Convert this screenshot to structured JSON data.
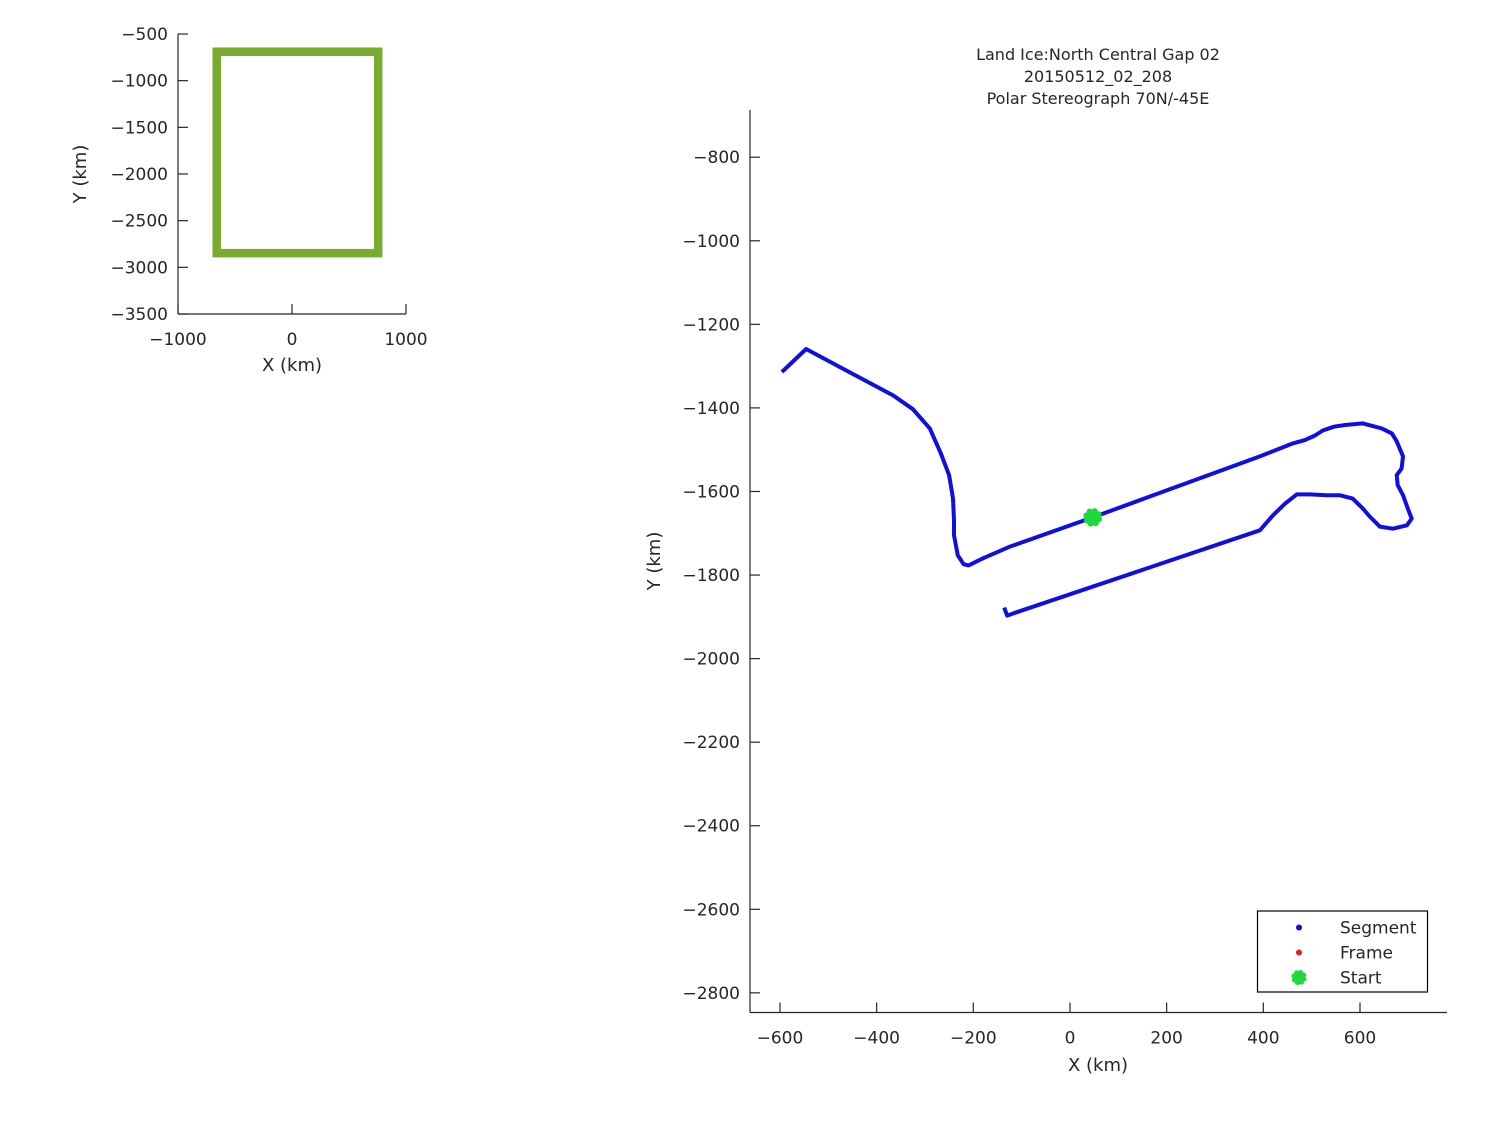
{
  "chart_data": [
    {
      "type": "line",
      "name": "coverage-overview",
      "xlabel": "X (km)",
      "ylabel": "Y (km)",
      "xlim": [
        -1000,
        1000
      ],
      "ylim": [
        -3500,
        -500
      ],
      "xticks": [
        -1000,
        0,
        1000
      ],
      "yticks": [
        -500,
        -1000,
        -1500,
        -2000,
        -2500,
        -3000,
        -3500
      ],
      "grid": false,
      "legend": null,
      "series": [
        {
          "name": "map-boundary",
          "style": "rect-outline",
          "color": "#77AC30",
          "rect_km": {
            "x_min": -660,
            "x_max": 756,
            "y_min": -2848,
            "y_max": -690
          }
        }
      ]
    },
    {
      "type": "line",
      "name": "flight-track",
      "title_lines": [
        "Land Ice:North Central Gap 02",
        "20150512_02_208",
        "Polar Stereograph 70N/-45E"
      ],
      "xlabel": "X (km)",
      "ylabel": "Y (km)",
      "xlim": [
        -662,
        780
      ],
      "ylim": [
        -2847,
        -687
      ],
      "xticks": [
        -600,
        -400,
        -200,
        0,
        200,
        400,
        600
      ],
      "yticks": [
        -800,
        -1000,
        -1200,
        -1400,
        -1600,
        -1800,
        -2000,
        -2200,
        -2400,
        -2600,
        -2800
      ],
      "grid": false,
      "series": [
        {
          "name": "Segment",
          "style": "path",
          "color": "#0F0FE0",
          "points_km": [
            [
              -596,
              -1314
            ],
            [
              -546,
              -1259
            ],
            [
              -470,
              -1306
            ],
            [
              -366,
              -1370
            ],
            [
              -325,
              -1403
            ],
            [
              -290,
              -1449
            ],
            [
              -267,
              -1509
            ],
            [
              -250,
              -1561
            ],
            [
              -242,
              -1617
            ],
            [
              -240,
              -1669
            ],
            [
              -240,
              -1705
            ],
            [
              -232,
              -1753
            ],
            [
              -220,
              -1774
            ],
            [
              -210,
              -1777
            ],
            [
              -180,
              -1760
            ],
            [
              -124,
              -1732
            ],
            [
              47,
              -1662
            ],
            [
              393,
              -1516
            ],
            [
              461,
              -1485
            ],
            [
              486,
              -1477
            ],
            [
              507,
              -1466
            ],
            [
              523,
              -1454
            ],
            [
              546,
              -1445
            ],
            [
              569,
              -1441
            ],
            [
              606,
              -1437
            ],
            [
              645,
              -1449
            ],
            [
              666,
              -1461
            ],
            [
              676,
              -1480
            ],
            [
              689,
              -1516
            ],
            [
              686,
              -1545
            ],
            [
              676,
              -1561
            ],
            [
              678,
              -1585
            ],
            [
              689,
              -1609
            ],
            [
              699,
              -1641
            ],
            [
              707,
              -1665
            ],
            [
              697,
              -1681
            ],
            [
              668,
              -1689
            ],
            [
              641,
              -1684
            ],
            [
              620,
              -1660
            ],
            [
              606,
              -1641
            ],
            [
              585,
              -1617
            ],
            [
              558,
              -1609
            ],
            [
              531,
              -1609
            ],
            [
              496,
              -1607
            ],
            [
              469,
              -1607
            ],
            [
              445,
              -1629
            ],
            [
              420,
              -1657
            ],
            [
              393,
              -1693
            ],
            [
              -110,
              -1889
            ],
            [
              -130,
              -1897
            ],
            [
              -136,
              -1878
            ]
          ]
        },
        {
          "name": "Frame",
          "style": "dots",
          "color": "#E02020",
          "points_km": []
        },
        {
          "name": "Start",
          "style": "blob",
          "color": "#1FD93C",
          "points_km": [
            [
              47,
              -1662
            ]
          ]
        }
      ],
      "legend": {
        "position": "lower right",
        "items": [
          {
            "label": "Segment",
            "marker": "dot",
            "color": "#0F0FE0"
          },
          {
            "label": "Frame",
            "marker": "dot",
            "color": "#E02020"
          },
          {
            "label": "Start",
            "marker": "blob",
            "color": "#1FD93C"
          }
        ]
      }
    }
  ]
}
